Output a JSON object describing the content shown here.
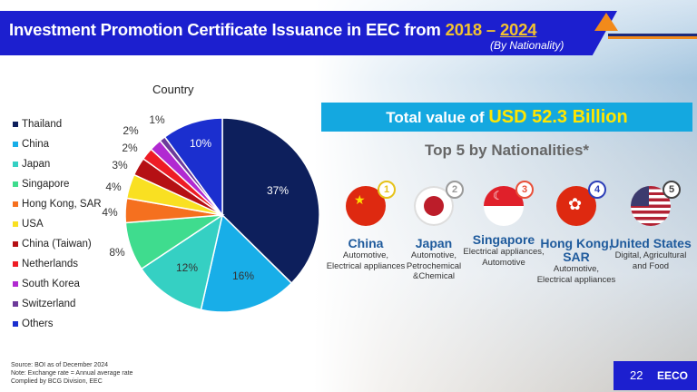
{
  "header": {
    "title": "Investment Promotion Certificate Issuance in EEC from",
    "year_start": "2018",
    "dash": " – ",
    "year_end": "2024",
    "subtitle": "(By Nationality)"
  },
  "chart_data": {
    "type": "pie",
    "title": "Country",
    "categories": [
      "Thailand",
      "China",
      "Japan",
      "Singapore",
      "Hong Kong, SAR",
      "USA",
      "China (Taiwan)",
      "Netherlands",
      "South Korea",
      "Switzerland",
      "Others"
    ],
    "values": [
      37,
      16,
      12,
      8,
      4,
      4,
      3,
      2,
      2,
      1,
      10
    ],
    "labels": [
      "37%",
      "16%",
      "12%",
      "8%",
      "4%",
      "4%",
      "3%",
      "2%",
      "2%",
      "1%",
      "10%"
    ],
    "colors": [
      "#0d1f5c",
      "#18aee8",
      "#35d0c3",
      "#3fdc8e",
      "#f5701f",
      "#f9e022",
      "#b51014",
      "#ee1c25",
      "#b12ad1",
      "#6d3a9a",
      "#1b2fcf"
    ],
    "legend": "left"
  },
  "summary": {
    "prefix": "Total value of ",
    "value": "USD 52.3 Billion",
    "top5_title": "Top 5 by Nationalities*"
  },
  "nationalities": [
    {
      "rank": "1",
      "name": "China",
      "desc": "Automotive, Electrical appliances",
      "badge": "#e6c21a"
    },
    {
      "rank": "2",
      "name": "Japan",
      "desc": "Automotive, Petrochemical &Chemical",
      "badge": "#9a9a9a"
    },
    {
      "rank": "3",
      "name": "Singapore",
      "desc": "Electrical appliances, Automotive",
      "badge": "#e8503a"
    },
    {
      "rank": "4",
      "name": "Hong Kong, SAR",
      "desc": "Automotive, Electrical appliances",
      "badge": "#2d3fb8"
    },
    {
      "rank": "5",
      "name": "United States",
      "desc": "Digital, Agricultural and Food",
      "badge": "#444444"
    }
  ],
  "footer": {
    "source": "Source: BOI as of December 2024",
    "note": "Note: Exchange rate = Annual average rate",
    "compiled": "Complied by BCG Division, EEC"
  },
  "page": {
    "number": "22",
    "logo": "EECO"
  }
}
